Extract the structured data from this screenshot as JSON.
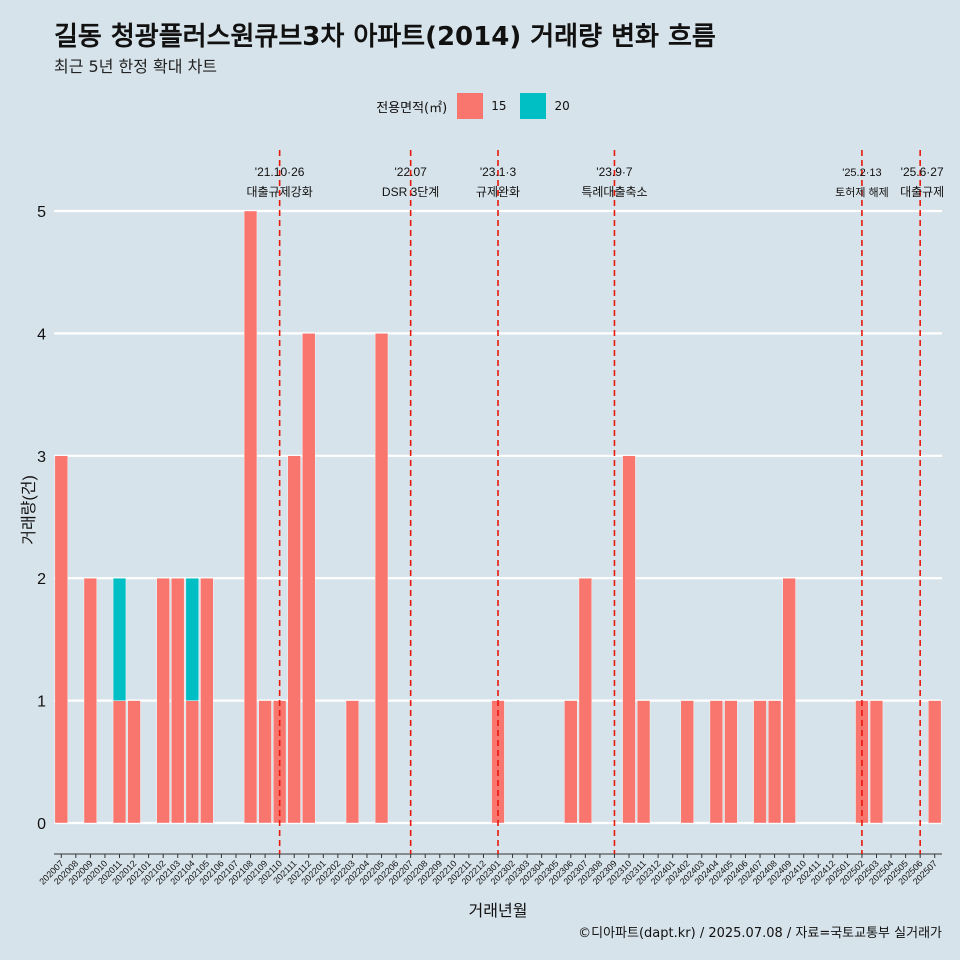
{
  "title": "길동 청광플러스원큐브3차 아파트(2014) 거래량 변화 흐름",
  "subtitle": "최근 5년 한정 확대 차트",
  "legend": {
    "title": "전용면적(㎡)",
    "items": [
      {
        "label": "15",
        "color": "#f8766d"
      },
      {
        "label": "20",
        "color": "#00bfc4"
      }
    ]
  },
  "caption": "©디아파트(dapt.kr) / 2025.07.08 / 자료=국토교통부 실거래가",
  "chart_data": {
    "type": "bar",
    "stacked": true,
    "xlabel": "거래년월",
    "ylabel": "거래량(건)",
    "ylim": [
      0,
      5
    ],
    "yticks": [
      0,
      1,
      2,
      3,
      4,
      5
    ],
    "categories": [
      "202007",
      "202008",
      "202009",
      "202010",
      "202011",
      "202012",
      "202101",
      "202102",
      "202103",
      "202104",
      "202105",
      "202106",
      "202107",
      "202108",
      "202109",
      "202110",
      "202111",
      "202112",
      "202201",
      "202202",
      "202203",
      "202204",
      "202205",
      "202206",
      "202207",
      "202208",
      "202209",
      "202210",
      "202211",
      "202212",
      "202301",
      "202302",
      "202303",
      "202304",
      "202305",
      "202306",
      "202307",
      "202308",
      "202309",
      "202310",
      "202311",
      "202312",
      "202401",
      "202402",
      "202403",
      "202404",
      "202405",
      "202406",
      "202407",
      "202408",
      "202409",
      "202410",
      "202411",
      "202412",
      "202501",
      "202502",
      "202503",
      "202504",
      "202505",
      "202506",
      "202507"
    ],
    "series": [
      {
        "name": "15",
        "color": "#f8766d",
        "values": [
          3,
          0,
          2,
          0,
          1,
          1,
          0,
          2,
          2,
          1,
          2,
          0,
          0,
          5,
          1,
          1,
          3,
          4,
          0,
          0,
          1,
          0,
          4,
          0,
          0,
          0,
          0,
          0,
          0,
          0,
          1,
          0,
          0,
          0,
          0,
          1,
          2,
          0,
          0,
          3,
          1,
          0,
          0,
          1,
          0,
          1,
          1,
          0,
          1,
          1,
          2,
          0,
          0,
          0,
          0,
          1,
          1,
          0,
          0,
          0,
          1
        ]
      },
      {
        "name": "20",
        "color": "#00bfc4",
        "values": [
          0,
          0,
          0,
          0,
          1,
          0,
          0,
          0,
          0,
          1,
          0,
          0,
          0,
          0,
          0,
          0,
          0,
          0,
          0,
          0,
          0,
          0,
          0,
          0,
          0,
          0,
          0,
          0,
          0,
          0,
          0,
          0,
          0,
          0,
          0,
          0,
          0,
          0,
          0,
          0,
          0,
          0,
          0,
          0,
          0,
          0,
          0,
          0,
          0,
          0,
          0,
          0,
          0,
          0,
          0,
          0,
          0,
          0,
          0,
          0,
          0
        ]
      }
    ],
    "events": [
      {
        "date": "'21.10·26",
        "label": "대출규제강화",
        "at": "202110"
      },
      {
        "date": "'22.07",
        "label": "DSR 3단계",
        "at": "202207"
      },
      {
        "date": "'23.1·3",
        "label": "규제완화",
        "at": "202301"
      },
      {
        "date": "'23.9·7",
        "label": "특례대출축소",
        "at": "202309"
      },
      {
        "date": "'25.2·13",
        "label": "토허제 해제",
        "at": "202502"
      },
      {
        "date": "'25.6·27",
        "label": "대출규제",
        "at": "202506"
      }
    ],
    "grid": true
  }
}
